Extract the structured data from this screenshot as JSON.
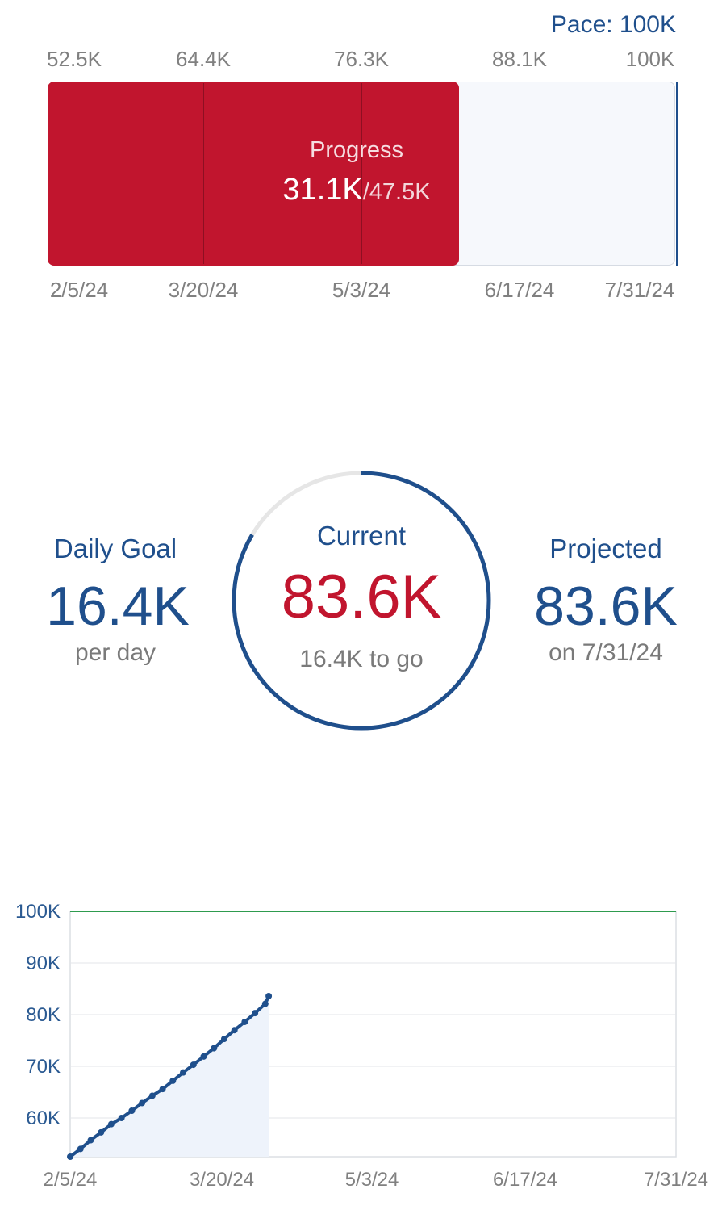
{
  "pace_bar": {
    "pace_label": "Pace: 100K",
    "top_ticks": [
      "52.5K",
      "64.4K",
      "76.3K",
      "88.1K",
      "100K"
    ],
    "bottom_ticks": [
      "2/5/24",
      "3/20/24",
      "5/3/24",
      "6/17/24",
      "7/31/24"
    ],
    "progress_label": "Progress",
    "progress_value": "31.1K",
    "progress_total": "/47.5K",
    "progress_fraction": 0.655,
    "colors": {
      "fill": "#c1152e",
      "track": "#f6f8fc",
      "marker": "#1f4f8c"
    }
  },
  "stats": {
    "daily_goal": {
      "label": "Daily Goal",
      "value": "16.4K",
      "sub": "per day"
    },
    "current": {
      "label": "Current",
      "value": "83.6K",
      "sub": "16.4K to go",
      "ring_fraction": 0.836
    },
    "projected": {
      "label": "Projected",
      "value": "83.6K",
      "sub": "on 7/31/24"
    }
  },
  "chart_data": {
    "type": "area",
    "x_labels": [
      "2/5/24",
      "3/20/24",
      "5/3/24",
      "6/17/24",
      "7/31/24"
    ],
    "y_ticks": [
      "100K",
      "90K",
      "80K",
      "70K",
      "60K"
    ],
    "ylim": [
      52500,
      100000
    ],
    "goal_line": 100000,
    "x_range_days": [
      0,
      177
    ],
    "series": [
      {
        "x": [
          0,
          3,
          6,
          9,
          12,
          15,
          18,
          21,
          24,
          27,
          30,
          33,
          36,
          39,
          42,
          45,
          48,
          51,
          54,
          57,
          58
        ],
        "y": [
          52500,
          54000,
          55700,
          57200,
          58800,
          60000,
          61400,
          62900,
          64300,
          65600,
          67200,
          68800,
          70300,
          71900,
          73500,
          75300,
          77000,
          78600,
          80300,
          82100,
          83600
        ]
      }
    ],
    "colors": {
      "line": "#1f4f8c",
      "fill": "#eef3fb",
      "goal": "#2e9b4e",
      "grid": "#e3e6ea"
    }
  }
}
